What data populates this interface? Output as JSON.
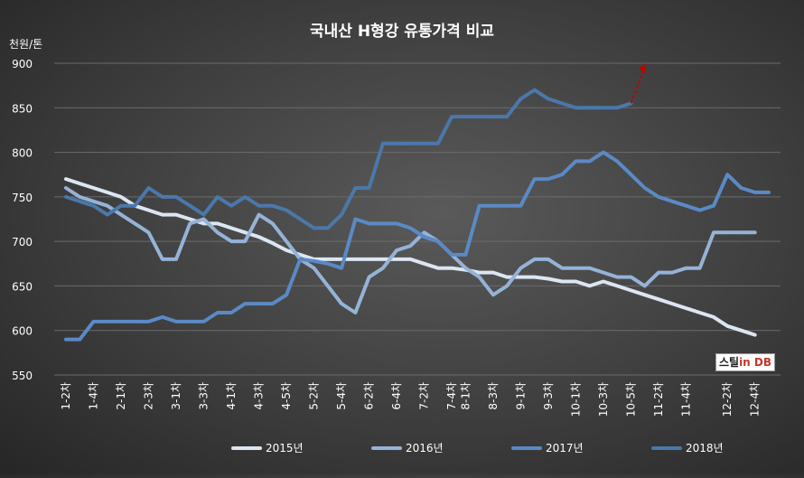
{
  "chart_data": {
    "type": "line",
    "title": "국내산 H형강 유통가격 비교",
    "ylabel": "천원/톤",
    "xlabel": "",
    "ylim": [
      550,
      900
    ],
    "yticks": [
      550,
      600,
      650,
      700,
      750,
      800,
      850,
      900
    ],
    "grid": true,
    "legend_position": "bottom",
    "x": [
      "1-2차",
      "1-3차",
      "1-4차",
      "1-5차",
      "2-1차",
      "2-2차",
      "2-3차",
      "2-4차",
      "3-1차",
      "3-2차",
      "3-3차",
      "3-4차",
      "4-1차",
      "4-2차",
      "4-3차",
      "4-4차",
      "4-5차",
      "5-1차",
      "5-2차",
      "5-3차",
      "5-4차",
      "6-1차",
      "6-2차",
      "6-3차",
      "6-4차",
      "7-1차",
      "7-2차",
      "7-3차",
      "7-4차",
      "8-1차",
      "8-2차",
      "8-3차",
      "8-4차",
      "9-1차",
      "9-2차",
      "9-3차",
      "9-4차",
      "10-1차",
      "10-2차",
      "10-3차",
      "10-4차",
      "10-5차",
      "11-1차",
      "11-2차",
      "11-3차",
      "11-4차",
      "11-5차",
      "12-1차",
      "12-2차",
      "12-3차",
      "12-4차",
      "12-5차"
    ],
    "x_tick_labels": [
      "1-2차",
      "1-4차",
      "2-1차",
      "2-3차",
      "3-1차",
      "3-3차",
      "4-1차",
      "4-3차",
      "4-5차",
      "5-2차",
      "5-4차",
      "6-2차",
      "6-4차",
      "7-2차",
      "7-4차",
      "8-1차",
      "8-3차",
      "9-1차",
      "9-3차",
      "10-1차",
      "10-3차",
      "10-5차",
      "11-2차",
      "11-4차",
      "12-2차",
      "12-4차"
    ],
    "series": [
      {
        "name": "2015년",
        "color": "#dce6f2",
        "values": [
          770,
          765,
          760,
          755,
          750,
          740,
          735,
          730,
          730,
          725,
          720,
          720,
          715,
          710,
          705,
          698,
          690,
          685,
          680,
          680,
          680,
          680,
          680,
          680,
          680,
          680,
          675,
          670,
          670,
          668,
          665,
          665,
          660,
          660,
          660,
          658,
          655,
          655,
          650,
          655,
          650,
          645,
          640,
          635,
          630,
          625,
          620,
          615,
          605,
          600,
          595,
          null
        ]
      },
      {
        "name": "2016년",
        "color": "#95b3d7",
        "values": [
          760,
          750,
          745,
          740,
          730,
          720,
          710,
          680,
          680,
          720,
          725,
          710,
          700,
          700,
          730,
          720,
          700,
          680,
          670,
          650,
          630,
          620,
          660,
          670,
          690,
          695,
          710,
          700,
          685,
          670,
          660,
          640,
          650,
          670,
          680,
          680,
          670,
          670,
          670,
          665,
          660,
          660,
          650,
          665,
          665,
          670,
          670,
          710,
          710,
          710,
          710,
          null
        ]
      },
      {
        "name": "2017년",
        "color": "#5a8ac6",
        "values": [
          590,
          590,
          610,
          610,
          610,
          610,
          610,
          615,
          610,
          610,
          610,
          620,
          620,
          630,
          630,
          630,
          640,
          680,
          678,
          675,
          670,
          725,
          720,
          720,
          720,
          715,
          705,
          700,
          685,
          685,
          740,
          740,
          740,
          740,
          770,
          770,
          775,
          790,
          790,
          800,
          790,
          775,
          760,
          750,
          745,
          740,
          735,
          740,
          775,
          760,
          755,
          755
        ]
      },
      {
        "name": "2018년",
        "color": "#4a78aa",
        "values": [
          750,
          745,
          740,
          730,
          740,
          740,
          760,
          750,
          750,
          740,
          730,
          750,
          740,
          750,
          740,
          740,
          735,
          725,
          715,
          715,
          730,
          760,
          760,
          810,
          810,
          810,
          810,
          810,
          840,
          840,
          840,
          840,
          840,
          860,
          870,
          860,
          855,
          850,
          850,
          850,
          850,
          855,
          null,
          null,
          null,
          null,
          null,
          null,
          null,
          null,
          null,
          null
        ]
      }
    ],
    "annotation": {
      "type": "dashed-arrow",
      "color": "#c00000",
      "from_x": "10-5차",
      "from_y": 855,
      "to_y": 900
    }
  },
  "logo": {
    "text_a": "스틸",
    "text_b": "in DB"
  }
}
